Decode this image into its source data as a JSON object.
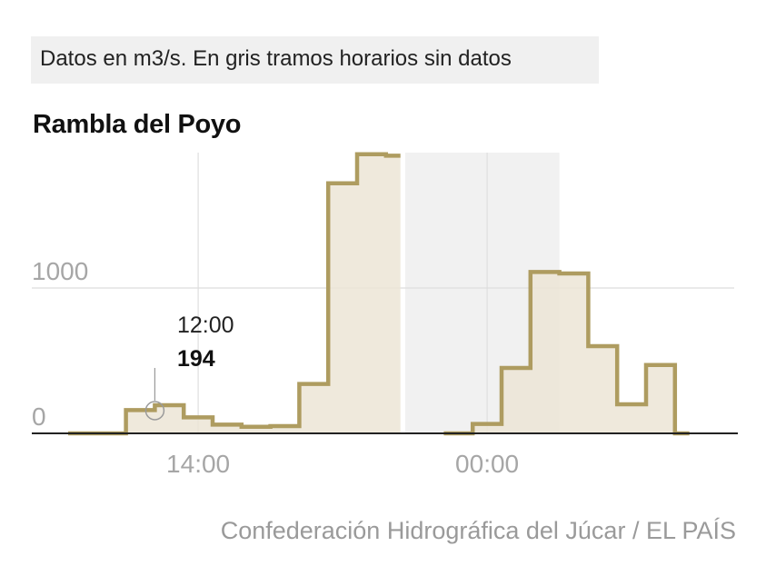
{
  "subtitle": "Datos en m3/s. En gris tramos horarios sin datos",
  "source": "Confederación Hidrográfica del Júcar / EL PAÍS",
  "chart_data": {
    "type": "area",
    "title": "Rambla del Poyo",
    "xlabel": "",
    "ylabel": "",
    "y_ticks": [
      0,
      1000
    ],
    "ylim": [
      0,
      2000
    ],
    "x_tick_labels": [
      "14:00",
      "00:00"
    ],
    "step": true,
    "grid": true,
    "no_data_label": "En gris tramos horarios sin datos",
    "series": [
      {
        "x": [
          "09:00",
          "10:00",
          "11:00",
          "12:00",
          "13:00",
          "14:00",
          "15:00",
          "16:00",
          "17:00",
          "18:00",
          "19:00",
          "20:00"
        ],
        "y": [
          0,
          0,
          160,
          194,
          110,
          60,
          45,
          50,
          340,
          1720,
          1920,
          1910
        ]
      },
      {
        "x": [
          "22:00",
          "23:00",
          "00:00",
          "01:00",
          "02:00",
          "03:00",
          "04:00",
          "05:00",
          "06:00"
        ],
        "y": [
          0,
          65,
          450,
          1110,
          1100,
          600,
          200,
          470,
          0
        ]
      }
    ],
    "no_data_ranges": [
      [
        "20:40",
        "02:00"
      ]
    ],
    "annotation": {
      "time": "12:00",
      "value": "194"
    },
    "colors": {
      "line": "#ae9c60",
      "fill": "#ece5d6",
      "fill_in_gap": "#e2dac8",
      "no_data": "#f1f1f1",
      "grid": "#dedede",
      "tick_text": "#a6a6a6",
      "zero_line": "#222222"
    }
  }
}
